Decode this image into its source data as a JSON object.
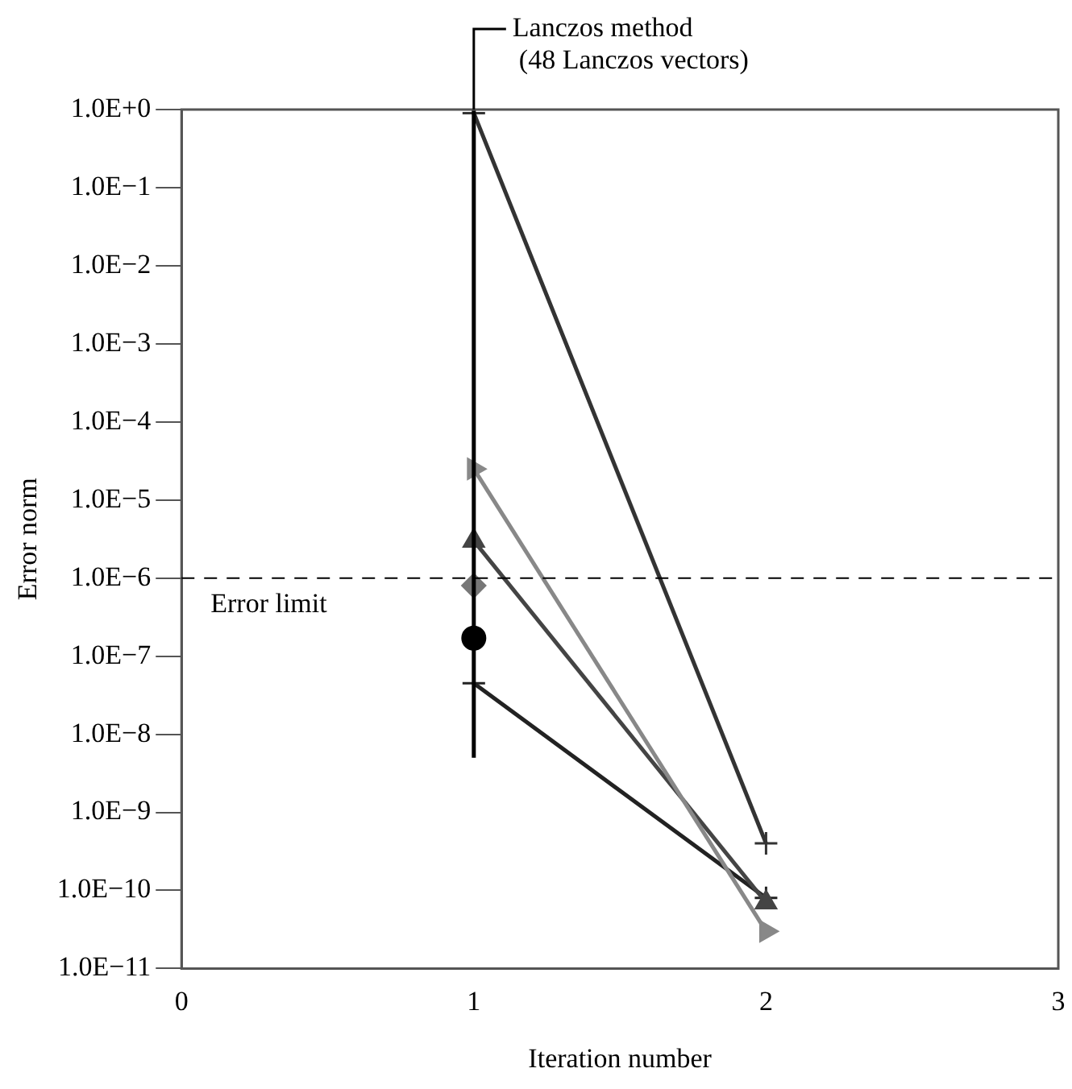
{
  "chart_data": {
    "type": "line",
    "xlabel": "Iteration number",
    "ylabel": "Error norm",
    "log": "y",
    "grid": false,
    "legend": false,
    "xlim": [
      0,
      3
    ],
    "xticks": [
      0,
      1,
      2,
      3
    ],
    "ylim": [
      1e-11,
      1
    ],
    "yticks": [
      {
        "value": 1,
        "label": "1.0E+0"
      },
      {
        "value": 0.1,
        "label": "1.0E−1"
      },
      {
        "value": 0.01,
        "label": "1.0E−2"
      },
      {
        "value": 0.001,
        "label": "1.0E−3"
      },
      {
        "value": 0.0001,
        "label": "1.0E−4"
      },
      {
        "value": 1e-05,
        "label": "1.0E−5"
      },
      {
        "value": 1e-06,
        "label": "1.0E−6"
      },
      {
        "value": 1e-07,
        "label": "1.0E−7"
      },
      {
        "value": 1e-08,
        "label": "1.0E−8"
      },
      {
        "value": 1e-09,
        "label": "1.0E−9"
      },
      {
        "value": 1e-10,
        "label": "1.0E−10"
      },
      {
        "value": 1e-11,
        "label": "1.0E−11"
      }
    ],
    "x": [
      1,
      2
    ],
    "series": [
      {
        "color": "#000000",
        "x": [
          1,
          1
        ],
        "values": [
          5e-09,
          1
        ],
        "marker": "none"
      },
      {
        "color": "#333333",
        "values": [
          0.9,
          4e-10
        ],
        "marker": "cross"
      },
      {
        "color": "#888888",
        "values": [
          2.5e-05,
          3e-11
        ],
        "marker": "triangle-right"
      },
      {
        "color": "#444444",
        "values": [
          3e-06,
          7e-11
        ],
        "marker": "triangle"
      },
      {
        "color": "#777777",
        "values": [
          8e-07,
          null
        ],
        "marker": "diamond"
      },
      {
        "color": "#000000",
        "values": [
          1.7e-07,
          null
        ],
        "marker": "circle"
      },
      {
        "color": "#222222",
        "values": [
          4.5e-08,
          8e-11
        ],
        "marker": "cross"
      }
    ],
    "ref_lines": [
      {
        "axis": "y",
        "value": 1e-06,
        "label": "Error limit",
        "line_style": "dashed",
        "color": "#000000"
      }
    ],
    "annotations": [
      {
        "text": "Lanczos method\n(48 Lanczos vectors)",
        "x": 1,
        "y": 1
      }
    ]
  }
}
